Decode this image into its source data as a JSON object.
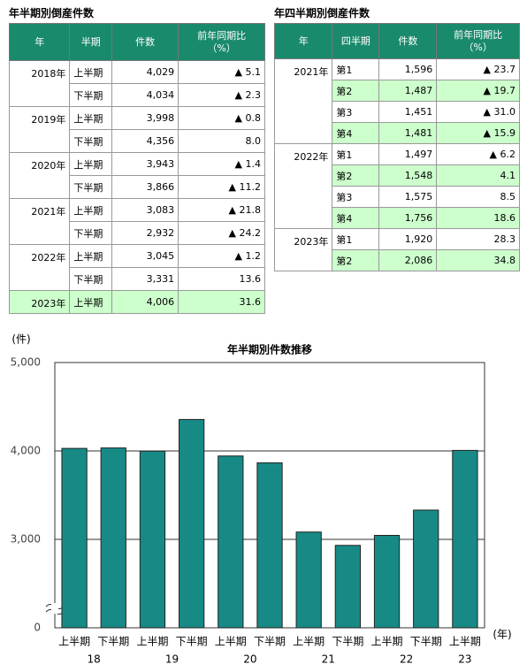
{
  "tables": [
    {
      "title": "年半期別倒産件数",
      "header": [
        "年",
        "半期",
        "件数",
        "前年同期比\n（%）"
      ],
      "groups": [
        {
          "year": "2018年",
          "rows": [
            {
              "cells": [
                "上半期",
                "4,029",
                "▲ 5.1"
              ],
              "highlight": false
            },
            {
              "cells": [
                "下半期",
                "4,034",
                "▲ 2.3"
              ],
              "highlight": false
            }
          ]
        },
        {
          "year": "2019年",
          "rows": [
            {
              "cells": [
                "上半期",
                "3,998",
                "▲ 0.8"
              ],
              "highlight": false
            },
            {
              "cells": [
                "下半期",
                "4,356",
                "8.0"
              ],
              "highlight": false
            }
          ]
        },
        {
          "year": "2020年",
          "rows": [
            {
              "cells": [
                "上半期",
                "3,943",
                "▲ 1.4"
              ],
              "highlight": false
            },
            {
              "cells": [
                "下半期",
                "3,866",
                "▲ 11.2"
              ],
              "highlight": false
            }
          ]
        },
        {
          "year": "2021年",
          "rows": [
            {
              "cells": [
                "上半期",
                "3,083",
                "▲ 21.8"
              ],
              "highlight": false
            },
            {
              "cells": [
                "下半期",
                "2,932",
                "▲ 24.2"
              ],
              "highlight": false
            }
          ]
        },
        {
          "year": "2022年",
          "rows": [
            {
              "cells": [
                "上半期",
                "3,045",
                "▲ 1.2"
              ],
              "highlight": false
            },
            {
              "cells": [
                "下半期",
                "3,331",
                "13.6"
              ],
              "highlight": false
            }
          ]
        },
        {
          "year": "2023年",
          "rows": [
            {
              "cells": [
                "上半期",
                "4,006",
                "31.6"
              ],
              "highlight": true
            }
          ]
        }
      ]
    },
    {
      "title": "年四半期別倒産件数",
      "header": [
        "年",
        "四半期",
        "件数",
        "前年同期比\n（%）"
      ],
      "groups": [
        {
          "year": "2021年",
          "rows": [
            {
              "cells": [
                "第1",
                "1,596",
                "▲ 23.7"
              ],
              "highlight": false
            },
            {
              "cells": [
                "第2",
                "1,487",
                "▲ 19.7"
              ],
              "highlight": true
            },
            {
              "cells": [
                "第3",
                "1,451",
                "▲ 31.0"
              ],
              "highlight": false
            },
            {
              "cells": [
                "第4",
                "1,481",
                "▲ 15.9"
              ],
              "highlight": true
            }
          ]
        },
        {
          "year": "2022年",
          "rows": [
            {
              "cells": [
                "第1",
                "1,497",
                "▲ 6.2"
              ],
              "highlight": false
            },
            {
              "cells": [
                "第2",
                "1,548",
                "4.1"
              ],
              "highlight": true
            },
            {
              "cells": [
                "第3",
                "1,575",
                "8.5"
              ],
              "highlight": false
            },
            {
              "cells": [
                "第4",
                "1,756",
                "18.6"
              ],
              "highlight": true
            }
          ]
        },
        {
          "year": "2023年",
          "rows": [
            {
              "cells": [
                "第1",
                "1,920",
                "28.3"
              ],
              "highlight": false
            },
            {
              "cells": [
                "第2",
                "2,086",
                "34.8"
              ],
              "highlight": true
            }
          ]
        }
      ]
    }
  ],
  "chart_data": {
    "type": "bar",
    "title": "年半期別件数推移",
    "y_unit": "(件)",
    "x_unit": "(年)",
    "categories": [
      "上半期",
      "下半期",
      "上半期",
      "下半期",
      "上半期",
      "下半期",
      "上半期",
      "下半期",
      "上半期",
      "下半期",
      "上半期"
    ],
    "year_labels": [
      "18",
      "19",
      "20",
      "21",
      "22",
      "23"
    ],
    "values": [
      4029,
      4034,
      3998,
      4356,
      3943,
      3866,
      3083,
      2932,
      3045,
      3331,
      4006
    ],
    "color": "#178a86",
    "ylim": [
      0,
      5000
    ],
    "axis_break": [
      0,
      2000
    ],
    "yticks": [
      0,
      {
        "value": 3000,
        "label": "3,000"
      },
      {
        "value": 4000,
        "label": "4,000"
      },
      {
        "value": 5000,
        "label": "5,000"
      }
    ],
    "grid": true
  }
}
